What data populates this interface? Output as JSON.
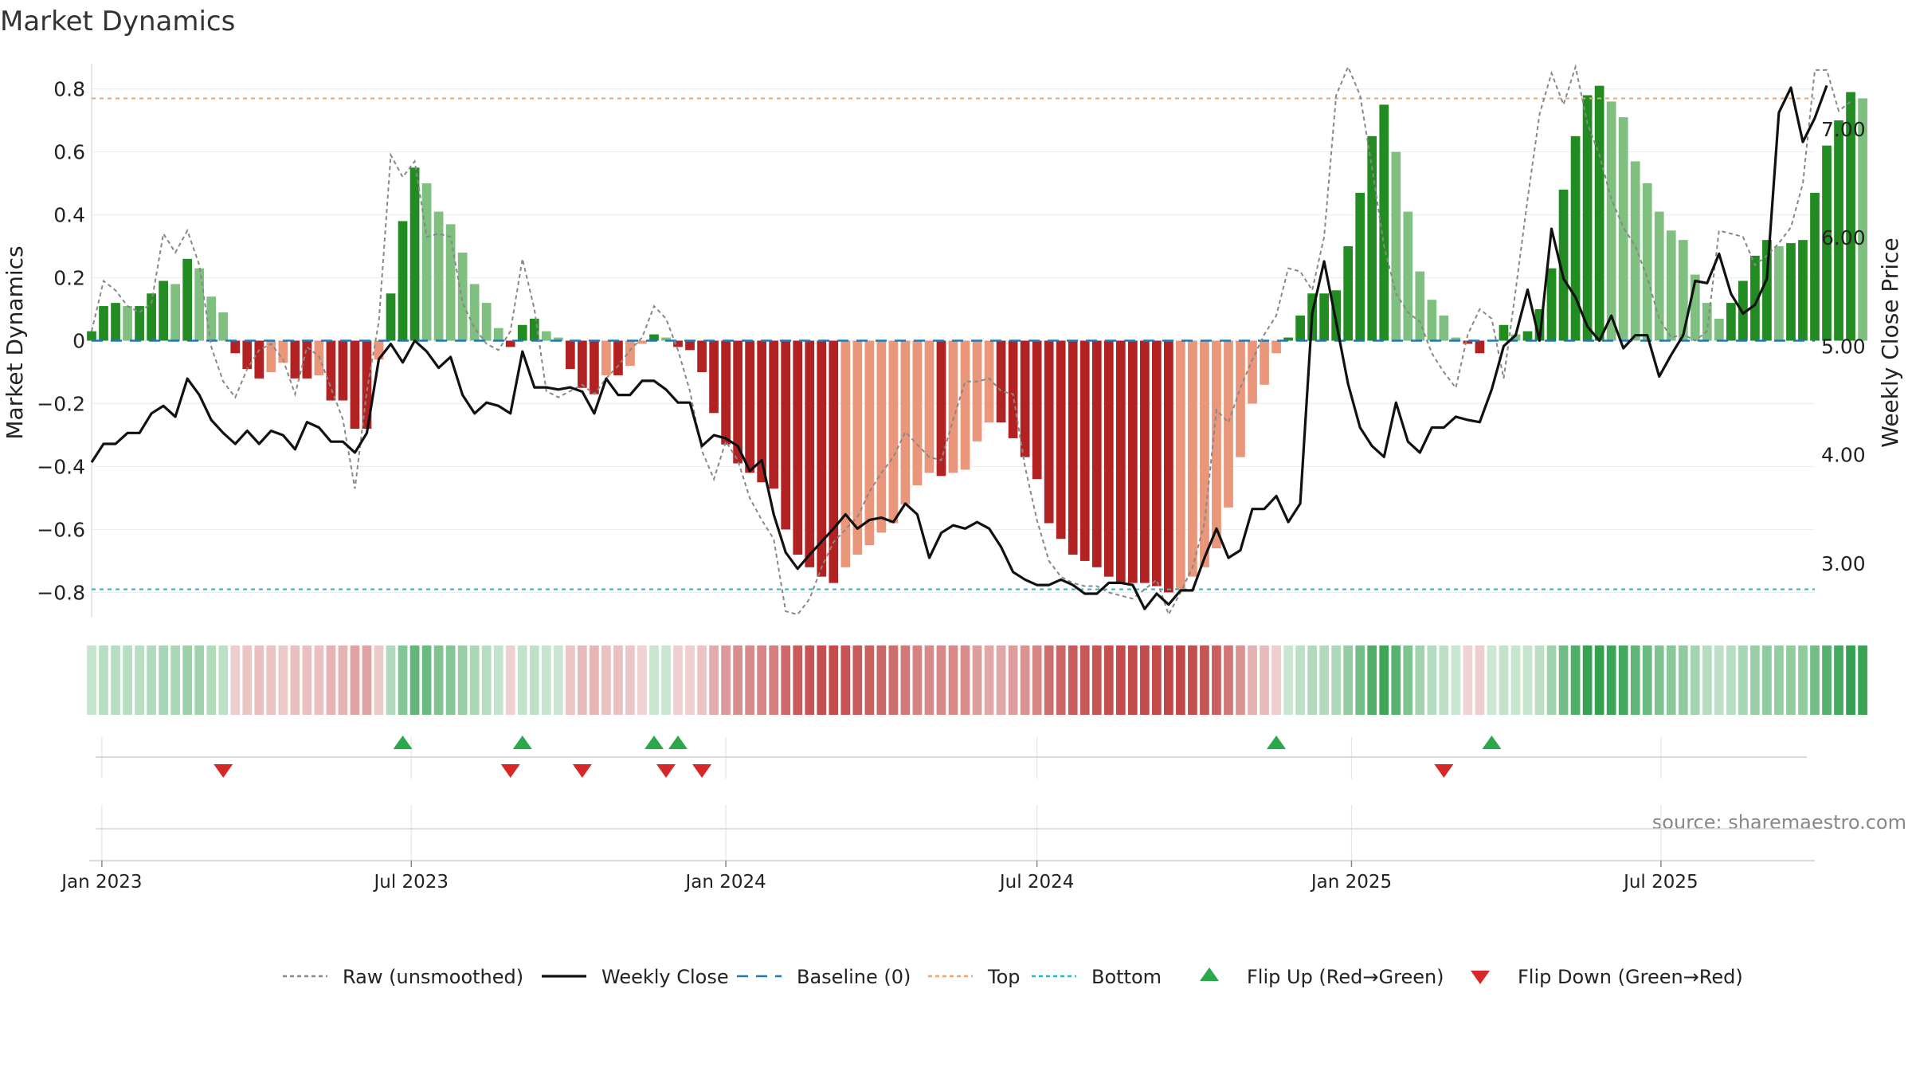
{
  "chart_data": {
    "type": "bar",
    "title": "Market Dynamics",
    "ylabel_left": "Market Dynamics",
    "ylabel_right": "Weekly Close Price",
    "source": "source: sharemaestro.com",
    "ylim_left": [
      -0.88,
      0.88
    ],
    "ylim_right": [
      2.5,
      7.6
    ],
    "yticks_left": [
      0.8,
      0.6,
      0.4,
      0.2,
      0,
      -0.2,
      -0.4,
      -0.6,
      -0.8
    ],
    "yticks_left_labels": [
      "0.8",
      "0.6",
      "0.4",
      "0.2",
      "0",
      "−0.2",
      "−0.4",
      "−0.6",
      "−0.8"
    ],
    "yticks_right": [
      7.0,
      6.0,
      5.0,
      4.0,
      3.0
    ],
    "yticks_right_labels": [
      "7.00",
      "6.00",
      "5.00",
      "4.00",
      "3.00"
    ],
    "top_level": 0.77,
    "bottom_level": -0.79,
    "baseline": 0,
    "x_start": "2022-12-26",
    "x_end": "2025-09-29",
    "x_ticks": [
      {
        "date": "2023-01-01",
        "label": "Jan 2023"
      },
      {
        "date": "2023-07-01",
        "label": "Jul 2023"
      },
      {
        "date": "2024-01-01",
        "label": "Jan 2024"
      },
      {
        "date": "2024-07-01",
        "label": "Jul 2024"
      },
      {
        "date": "2025-01-01",
        "label": "Jan 2025"
      },
      {
        "date": "2025-07-01",
        "label": "Jul 2025"
      }
    ],
    "weeks": {
      "start": "2022-12-26",
      "interval_days": 7,
      "smoothed": [
        0.03,
        0.11,
        0.12,
        0.11,
        0.11,
        0.15,
        0.19,
        0.18,
        0.26,
        0.23,
        0.14,
        0.09,
        -0.04,
        -0.09,
        -0.12,
        -0.1,
        -0.07,
        -0.12,
        -0.12,
        -0.11,
        -0.19,
        -0.19,
        -0.28,
        -0.28,
        -0.06,
        0.15,
        0.38,
        0.55,
        0.5,
        0.41,
        0.37,
        0.28,
        0.18,
        0.12,
        0.04,
        -0.02,
        0.05,
        0.07,
        0.03,
        0.01,
        -0.09,
        -0.15,
        -0.17,
        -0.11,
        -0.11,
        -0.08,
        -0.01,
        0.02,
        0.01,
        -0.02,
        -0.03,
        -0.1,
        -0.23,
        -0.33,
        -0.39,
        -0.42,
        -0.45,
        -0.47,
        -0.6,
        -0.68,
        -0.72,
        -0.75,
        -0.77,
        -0.72,
        -0.68,
        -0.65,
        -0.61,
        -0.58,
        -0.52,
        -0.46,
        -0.42,
        -0.43,
        -0.42,
        -0.41,
        -0.32,
        -0.26,
        -0.26,
        -0.31,
        -0.37,
        -0.44,
        -0.58,
        -0.63,
        -0.68,
        -0.7,
        -0.72,
        -0.75,
        -0.77,
        -0.77,
        -0.77,
        -0.78,
        -0.8,
        -0.79,
        -0.75,
        -0.72,
        -0.66,
        -0.53,
        -0.37,
        -0.2,
        -0.14,
        -0.04,
        0.01,
        0.08,
        0.15,
        0.15,
        0.16,
        0.3,
        0.47,
        0.65,
        0.75,
        0.6,
        0.41,
        0.22,
        0.13,
        0.08,
        0.01,
        -0.01,
        -0.04,
        0.0,
        0.05,
        0.02,
        0.03,
        0.1,
        0.23,
        0.48,
        0.65,
        0.78,
        0.81,
        0.76,
        0.71,
        0.57,
        0.5,
        0.41,
        0.35,
        0.32,
        0.21,
        0.12,
        0.07,
        0.12,
        0.19,
        0.27,
        0.32,
        0.3,
        0.31,
        0.32,
        0.47,
        0.62,
        0.7,
        0.79,
        0.77
      ],
      "raw": [
        0.03,
        0.19,
        0.16,
        0.11,
        0.09,
        0.12,
        0.34,
        0.28,
        0.35,
        0.24,
        -0.02,
        -0.13,
        -0.18,
        -0.09,
        -0.03,
        -0.01,
        -0.06,
        -0.17,
        -0.02,
        -0.05,
        -0.15,
        -0.25,
        -0.47,
        -0.16,
        0.06,
        0.59,
        0.52,
        0.57,
        0.33,
        0.34,
        0.33,
        0.12,
        0.04,
        -0.01,
        -0.03,
        0.03,
        0.26,
        0.1,
        -0.16,
        -0.18,
        -0.16,
        -0.14,
        -0.17,
        -0.12,
        -0.08,
        -0.03,
        0.01,
        0.11,
        0.07,
        -0.03,
        -0.16,
        -0.35,
        -0.44,
        -0.32,
        -0.38,
        -0.5,
        -0.57,
        -0.63,
        -0.86,
        -0.87,
        -0.82,
        -0.72,
        -0.64,
        -0.6,
        -0.56,
        -0.48,
        -0.42,
        -0.37,
        -0.29,
        -0.33,
        -0.37,
        -0.38,
        -0.25,
        -0.13,
        -0.13,
        -0.12,
        -0.16,
        -0.17,
        -0.4,
        -0.57,
        -0.7,
        -0.75,
        -0.77,
        -0.78,
        -0.78,
        -0.8,
        -0.81,
        -0.82,
        -0.79,
        -0.76,
        -0.87,
        -0.8,
        -0.72,
        -0.58,
        -0.22,
        -0.26,
        -0.15,
        -0.06,
        0.02,
        0.08,
        0.23,
        0.22,
        0.16,
        0.33,
        0.78,
        0.87,
        0.78,
        0.55,
        0.3,
        0.15,
        0.09,
        0.06,
        -0.04,
        -0.1,
        -0.15,
        0.02,
        0.1,
        0.07,
        -0.12,
        0.16,
        0.45,
        0.72,
        0.85,
        0.75,
        0.87,
        0.69,
        0.59,
        0.45,
        0.36,
        0.3,
        0.2,
        0.07,
        0.01,
        0.02,
        0.0,
        0.03,
        0.35,
        0.34,
        0.33,
        0.24,
        0.27,
        0.31,
        0.36,
        0.5,
        0.86,
        0.86,
        0.73,
        0.76
      ]
    },
    "price": [
      {
        "date": "2022-12-26",
        "v": 3.93
      },
      {
        "date": "2023-01-02",
        "v": 4.1
      },
      {
        "date": "2023-01-09",
        "v": 4.1
      },
      {
        "date": "2023-01-16",
        "v": 4.2
      },
      {
        "date": "2023-01-23",
        "v": 4.2
      },
      {
        "date": "2023-01-30",
        "v": 4.38
      },
      {
        "date": "2023-02-06",
        "v": 4.45
      },
      {
        "date": "2023-02-13",
        "v": 4.35
      },
      {
        "date": "2023-02-20",
        "v": 4.7
      },
      {
        "date": "2023-02-27",
        "v": 4.55
      },
      {
        "date": "2023-03-06",
        "v": 4.32
      },
      {
        "date": "2023-03-13",
        "v": 4.2
      },
      {
        "date": "2023-03-20",
        "v": 4.1
      },
      {
        "date": "2023-03-27",
        "v": 4.22
      },
      {
        "date": "2023-04-03",
        "v": 4.1
      },
      {
        "date": "2023-04-10",
        "v": 4.22
      },
      {
        "date": "2023-04-17",
        "v": 4.18
      },
      {
        "date": "2023-04-24",
        "v": 4.05
      },
      {
        "date": "2023-05-01",
        "v": 4.3
      },
      {
        "date": "2023-05-08",
        "v": 4.25
      },
      {
        "date": "2023-05-15",
        "v": 4.12
      },
      {
        "date": "2023-05-22",
        "v": 4.12
      },
      {
        "date": "2023-05-29",
        "v": 4.02
      },
      {
        "date": "2023-06-05",
        "v": 4.2
      },
      {
        "date": "2023-06-12",
        "v": 4.88
      },
      {
        "date": "2023-06-19",
        "v": 5.02
      },
      {
        "date": "2023-06-26",
        "v": 4.85
      },
      {
        "date": "2023-07-03",
        "v": 5.05
      },
      {
        "date": "2023-07-10",
        "v": 4.95
      },
      {
        "date": "2023-07-17",
        "v": 4.8
      },
      {
        "date": "2023-07-24",
        "v": 4.9
      },
      {
        "date": "2023-07-31",
        "v": 4.55
      },
      {
        "date": "2023-08-07",
        "v": 4.38
      },
      {
        "date": "2023-08-14",
        "v": 4.48
      },
      {
        "date": "2023-08-21",
        "v": 4.45
      },
      {
        "date": "2023-08-28",
        "v": 4.38
      },
      {
        "date": "2023-09-04",
        "v": 4.95
      },
      {
        "date": "2023-09-11",
        "v": 4.62
      },
      {
        "date": "2023-09-18",
        "v": 4.62
      },
      {
        "date": "2023-09-25",
        "v": 4.6
      },
      {
        "date": "2023-10-02",
        "v": 4.62
      },
      {
        "date": "2023-10-09",
        "v": 4.58
      },
      {
        "date": "2023-10-16",
        "v": 4.38
      },
      {
        "date": "2023-10-23",
        "v": 4.7
      },
      {
        "date": "2023-10-30",
        "v": 4.55
      },
      {
        "date": "2023-11-06",
        "v": 4.55
      },
      {
        "date": "2023-11-13",
        "v": 4.68
      },
      {
        "date": "2023-11-20",
        "v": 4.68
      },
      {
        "date": "2023-11-27",
        "v": 4.6
      },
      {
        "date": "2023-12-04",
        "v": 4.48
      },
      {
        "date": "2023-12-11",
        "v": 4.48
      },
      {
        "date": "2023-12-18",
        "v": 4.08
      },
      {
        "date": "2023-12-25",
        "v": 4.18
      },
      {
        "date": "2024-01-01",
        "v": 4.15
      },
      {
        "date": "2024-01-08",
        "v": 4.08
      },
      {
        "date": "2024-01-15",
        "v": 3.85
      },
      {
        "date": "2024-01-22",
        "v": 3.95
      },
      {
        "date": "2024-01-29",
        "v": 3.45
      },
      {
        "date": "2024-02-05",
        "v": 3.1
      },
      {
        "date": "2024-02-12",
        "v": 2.95
      },
      {
        "date": "2024-02-19",
        "v": 3.08
      },
      {
        "date": "2024-02-26",
        "v": 3.2
      },
      {
        "date": "2024-03-04",
        "v": 3.32
      },
      {
        "date": "2024-03-11",
        "v": 3.45
      },
      {
        "date": "2024-03-18",
        "v": 3.32
      },
      {
        "date": "2024-03-25",
        "v": 3.4
      },
      {
        "date": "2024-04-01",
        "v": 3.42
      },
      {
        "date": "2024-04-08",
        "v": 3.38
      },
      {
        "date": "2024-04-15",
        "v": 3.55
      },
      {
        "date": "2024-04-22",
        "v": 3.45
      },
      {
        "date": "2024-04-29",
        "v": 3.05
      },
      {
        "date": "2024-05-06",
        "v": 3.28
      },
      {
        "date": "2024-05-13",
        "v": 3.35
      },
      {
        "date": "2024-05-20",
        "v": 3.32
      },
      {
        "date": "2024-05-27",
        "v": 3.38
      },
      {
        "date": "2024-06-03",
        "v": 3.32
      },
      {
        "date": "2024-06-10",
        "v": 3.15
      },
      {
        "date": "2024-06-17",
        "v": 2.92
      },
      {
        "date": "2024-06-24",
        "v": 2.85
      },
      {
        "date": "2024-07-01",
        "v": 2.8
      },
      {
        "date": "2024-07-08",
        "v": 2.8
      },
      {
        "date": "2024-07-15",
        "v": 2.85
      },
      {
        "date": "2024-07-22",
        "v": 2.8
      },
      {
        "date": "2024-07-29",
        "v": 2.72
      },
      {
        "date": "2024-08-05",
        "v": 2.72
      },
      {
        "date": "2024-08-12",
        "v": 2.82
      },
      {
        "date": "2024-08-19",
        "v": 2.82
      },
      {
        "date": "2024-08-26",
        "v": 2.8
      },
      {
        "date": "2024-09-02",
        "v": 2.58
      },
      {
        "date": "2024-09-09",
        "v": 2.72
      },
      {
        "date": "2024-09-16",
        "v": 2.62
      },
      {
        "date": "2024-09-23",
        "v": 2.75
      },
      {
        "date": "2024-09-30",
        "v": 2.75
      },
      {
        "date": "2024-10-07",
        "v": 3.05
      },
      {
        "date": "2024-10-14",
        "v": 3.32
      },
      {
        "date": "2024-10-21",
        "v": 3.05
      },
      {
        "date": "2024-10-28",
        "v": 3.12
      },
      {
        "date": "2024-11-04",
        "v": 3.5
      },
      {
        "date": "2024-11-11",
        "v": 3.5
      },
      {
        "date": "2024-11-18",
        "v": 3.62
      },
      {
        "date": "2024-11-25",
        "v": 3.38
      },
      {
        "date": "2024-12-02",
        "v": 3.55
      },
      {
        "date": "2024-12-09",
        "v": 5.3
      },
      {
        "date": "2024-12-16",
        "v": 5.78
      },
      {
        "date": "2024-12-23",
        "v": 5.22
      },
      {
        "date": "2024-12-30",
        "v": 4.65
      },
      {
        "date": "2025-01-06",
        "v": 4.25
      },
      {
        "date": "2025-01-13",
        "v": 4.08
      },
      {
        "date": "2025-01-20",
        "v": 3.98
      },
      {
        "date": "2025-01-27",
        "v": 4.48
      },
      {
        "date": "2025-02-03",
        "v": 4.12
      },
      {
        "date": "2025-02-10",
        "v": 4.02
      },
      {
        "date": "2025-02-17",
        "v": 4.25
      },
      {
        "date": "2025-02-24",
        "v": 4.25
      },
      {
        "date": "2025-03-03",
        "v": 4.35
      },
      {
        "date": "2025-03-10",
        "v": 4.32
      },
      {
        "date": "2025-03-17",
        "v": 4.3
      },
      {
        "date": "2025-03-24",
        "v": 4.6
      },
      {
        "date": "2025-03-31",
        "v": 5.0
      },
      {
        "date": "2025-04-07",
        "v": 5.1
      },
      {
        "date": "2025-04-14",
        "v": 5.52
      },
      {
        "date": "2025-04-21",
        "v": 5.05
      },
      {
        "date": "2025-04-28",
        "v": 6.08
      },
      {
        "date": "2025-05-05",
        "v": 5.62
      },
      {
        "date": "2025-05-12",
        "v": 5.45
      },
      {
        "date": "2025-05-19",
        "v": 5.18
      },
      {
        "date": "2025-05-26",
        "v": 5.05
      },
      {
        "date": "2025-06-02",
        "v": 5.28
      },
      {
        "date": "2025-06-09",
        "v": 4.98
      },
      {
        "date": "2025-06-16",
        "v": 5.1
      },
      {
        "date": "2025-06-23",
        "v": 5.1
      },
      {
        "date": "2025-06-30",
        "v": 4.72
      },
      {
        "date": "2025-07-07",
        "v": 4.92
      },
      {
        "date": "2025-07-14",
        "v": 5.1
      },
      {
        "date": "2025-07-21",
        "v": 5.6
      },
      {
        "date": "2025-07-28",
        "v": 5.58
      },
      {
        "date": "2025-08-04",
        "v": 5.85
      },
      {
        "date": "2025-08-11",
        "v": 5.48
      },
      {
        "date": "2025-08-18",
        "v": 5.3
      },
      {
        "date": "2025-08-25",
        "v": 5.38
      },
      {
        "date": "2025-09-01",
        "v": 5.62
      },
      {
        "date": "2025-09-08",
        "v": 7.15
      },
      {
        "date": "2025-09-15",
        "v": 7.38
      },
      {
        "date": "2025-09-22",
        "v": 6.88
      },
      {
        "date": "2025-09-29",
        "v": 7.1
      },
      {
        "date": "2025-10-06",
        "v": 7.4
      }
    ],
    "flip_up_dates": [
      "2023-06-26",
      "2023-09-04",
      "2023-11-20",
      "2023-12-04",
      "2024-11-18",
      "2025-03-24"
    ],
    "flip_down_dates": [
      "2023-03-13",
      "2023-08-28",
      "2023-10-09",
      "2023-11-27",
      "2023-12-18",
      "2025-02-24"
    ],
    "legend": [
      {
        "label": "Raw (unsmoothed)",
        "kind": "dotted",
        "color": "#888888"
      },
      {
        "label": "Weekly Close",
        "kind": "solid",
        "color": "#111111"
      },
      {
        "label": "Baseline (0)",
        "kind": "dashed",
        "color": "#1f77b4"
      },
      {
        "label": "Top",
        "kind": "dotted",
        "color": "#f4a261"
      },
      {
        "label": "Bottom",
        "kind": "dotted",
        "color": "#17becf"
      },
      {
        "label": "Flip Up (Red→Green)",
        "kind": "tri-up",
        "color": "#2aa84a"
      },
      {
        "label": "Flip Down (Green→Red)",
        "kind": "tri-down",
        "color": "#d62828"
      }
    ],
    "legend_position": "bottom-center",
    "grid": true,
    "colors": {
      "strong_green": "#228b22",
      "light_green": "#7fbf7f",
      "strong_red": "#b22222",
      "light_red": "#e9967a",
      "baseline": "#1f77b4",
      "top": "#f4a261",
      "bottom": "#17becf",
      "raw": "#888888",
      "close": "#111111"
    }
  }
}
